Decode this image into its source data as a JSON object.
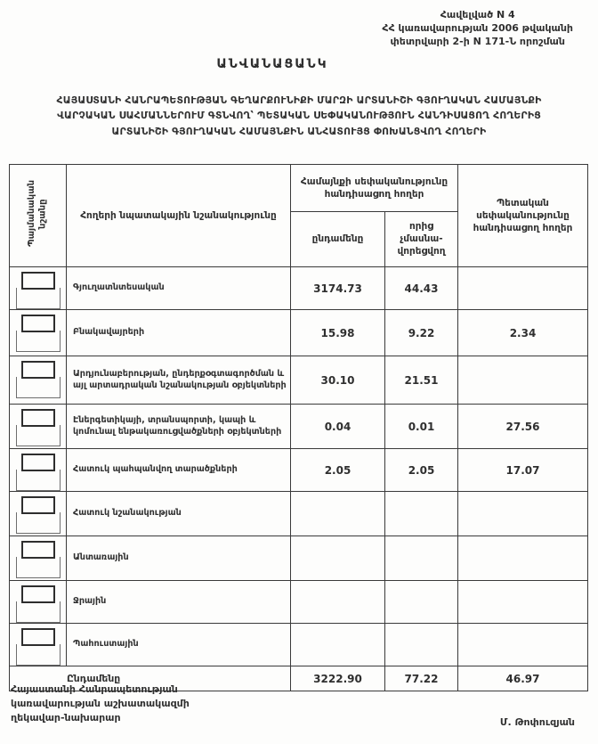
{
  "decree_reference": {
    "line1": "Հավելված N 4",
    "line2": "ՀՀ կառավարության 2006 թվականի",
    "line3": "փետրվարի 2-ի N 171-Ն որոշման"
  },
  "title": "ԱՆՎԱՆԱՑԱՆԿ",
  "subtitle_lines": [
    "ՀԱՅԱՍՏԱՆԻ ՀԱՆՐԱՊԵՏՈՒԹՅԱՆ ԳԵՂԱՐՔՈՒՆԻՔԻ ՄԱՐԶԻ ԱՐՏԱՆԻՇԻ ԳՅՈՒՂԱԿԱՆ ՀԱՄԱՅՆՔԻ",
    "ՎԱՐՉԱԿԱՆ ՍԱՀՄԱՆՆԵՐՈՒՄ ԳՏՆՎՈՂ՝ ՊԵՏԱԿԱՆ ՍԵՓԱԿԱՆՈՒԹՅՈՒՆ ՀԱՆԴԻՍԱՑՈՂ ՀՈՂԵՐԻՑ",
    "ԱՐՏԱՆԻՇԻ ԳՅՈՒՂԱԿԱՆ ՀԱՄԱՅՆՔԻՆ ԱՆՀԱՏՈՒՅՑ ՓՈԽԱՆՑՎՈՂ ՀՈՂԵՐԻ"
  ],
  "table": {
    "col_symbol": "Պայմանական նշանը",
    "col_purpose": "Հողերի նպատակային նշանակությունը",
    "group_community": "Համայնքի սեփականությունը հանդիսացող հողեր",
    "col_total": "ընդամենը",
    "col_unused": "որից չմասնա-վորեցվող",
    "col_state": "Պետական սեփականությունը հանդիսացող հողեր",
    "rows": [
      {
        "label": "Գյուղատնտեսական",
        "total": "3174.73",
        "unused": "44.43",
        "state": ""
      },
      {
        "label": "Բնակավայրերի",
        "total": "15.98",
        "unused": "9.22",
        "state": "2.34"
      },
      {
        "label": "Արդյունաբերության, ընդերքօգտագործման և այլ արտադրական նշանակության օբյեկտների",
        "total": "30.10",
        "unused": "21.51",
        "state": ""
      },
      {
        "label": "Էներգետիկայի, տրանսպորտի, կապի և կոմունալ ենթակառուցվածքների օբյեկտների",
        "total": "0.04",
        "unused": "0.01",
        "state": "27.56"
      },
      {
        "label": "Հատուկ պահպանվող տարածքների",
        "total": "2.05",
        "unused": "2.05",
        "state": "17.07"
      },
      {
        "label": "Հատուկ նշանակության",
        "total": "",
        "unused": "",
        "state": ""
      },
      {
        "label": "Անտառային",
        "total": "",
        "unused": "",
        "state": ""
      },
      {
        "label": "Ջրային",
        "total": "",
        "unused": "",
        "state": ""
      },
      {
        "label": "Պահուստային",
        "total": "",
        "unused": "",
        "state": ""
      }
    ],
    "total_row": {
      "label": "Ընդամենը",
      "total": "3222.90",
      "unused": "77.22",
      "state": "46.97"
    }
  },
  "footer": {
    "left_lines": [
      "Հայաստանի Հանրապետության",
      "կառավարության աշխատակազմի",
      "ղեկավար-նախարար"
    ],
    "signature": "Մ. Թոփուզյան"
  },
  "colors": {
    "ink": "#2f2f2f",
    "paper": "#fdfdfc",
    "border": "#3a3a3a"
  }
}
